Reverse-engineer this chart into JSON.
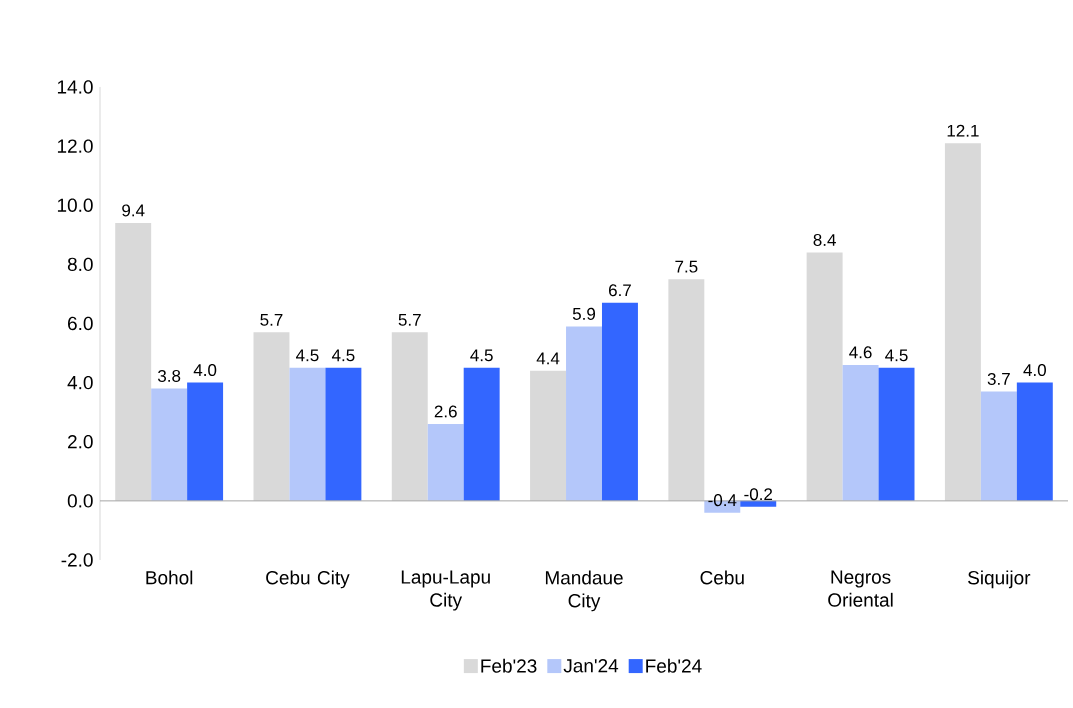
{
  "chart_data": {
    "type": "bar",
    "categories": [
      "Bohol",
      "Cebu City",
      "Lapu-Lapu City",
      "Mandaue City",
      "Cebu",
      "Negros Oriental",
      "Siquijor"
    ],
    "series": [
      {
        "name": "Feb'23",
        "color": "#d9d9d9",
        "values": [
          9.4,
          5.7,
          5.7,
          4.4,
          7.5,
          8.4,
          12.1
        ],
        "value_labels": [
          "9.4",
          "5.7",
          "5.7",
          "4.4",
          "7.5",
          "8.4",
          "12.1"
        ]
      },
      {
        "name": "Jan'24",
        "color": "#b4c7fa",
        "values": [
          3.8,
          4.5,
          2.6,
          5.9,
          -0.4,
          4.6,
          3.7
        ],
        "value_labels": [
          "3.8",
          "4.5",
          "2.6",
          "5.9",
          "-0.4",
          "4.6",
          "3.7"
        ]
      },
      {
        "name": "Feb'24",
        "color": "#3366ff",
        "values": [
          4.0,
          4.5,
          4.5,
          6.7,
          -0.2,
          4.5,
          4.0
        ],
        "value_labels": [
          "4.0",
          "4.5",
          "4.5",
          "6.7",
          "-0.2",
          "4.5",
          "4.0"
        ]
      }
    ],
    "ylim": [
      -2,
      14
    ],
    "yticks": [
      {
        "value": -2,
        "label": "-2.0"
      },
      {
        "value": 0,
        "label": "0.0"
      },
      {
        "value": 2,
        "label": "2.0"
      },
      {
        "value": 4,
        "label": "4.0"
      },
      {
        "value": 6,
        "label": "6.0"
      },
      {
        "value": 8,
        "label": "8.0"
      },
      {
        "value": 10,
        "label": "10.0"
      },
      {
        "value": 12,
        "label": "12.0"
      },
      {
        "value": 14,
        "label": "14.0"
      }
    ],
    "ref_lines": [
      {
        "axis": "y",
        "value": 0,
        "color": "#a6a6a6"
      }
    ],
    "grid": false,
    "legend": "bottom"
  }
}
